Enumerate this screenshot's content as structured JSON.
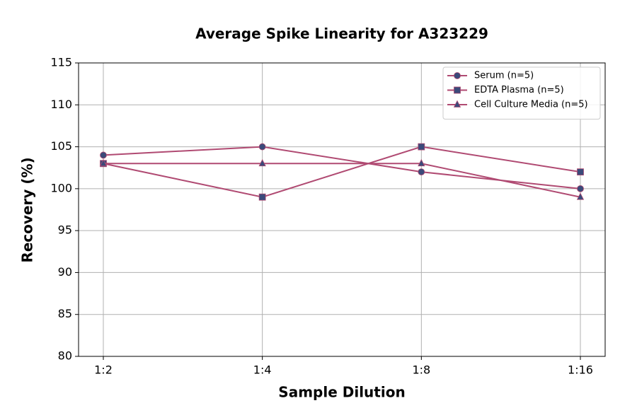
{
  "chart_data": {
    "type": "line",
    "title": "Average Spike Linearity for A323229",
    "x_label": "Sample Dilution",
    "y_label": "Recovery (%)",
    "categories": [
      "1:2",
      "1:4",
      "1:8",
      "1:16"
    ],
    "series": [
      {
        "name": "Serum (n=5)",
        "color": "#b04a72",
        "marker": "circle",
        "marker_color": "#3b4a7a",
        "values": [
          104,
          105,
          102,
          100
        ]
      },
      {
        "name": "EDTA Plasma (n=5)",
        "color": "#b04a72",
        "marker": "square",
        "marker_color": "#3b4a7a",
        "values": [
          103,
          99,
          105,
          102
        ]
      },
      {
        "name": "Cell Culture Media (n=5)",
        "color": "#b04a72",
        "marker": "triangle",
        "marker_color": "#3b4a7a",
        "values": [
          103,
          103,
          103,
          99
        ]
      }
    ],
    "ylim": [
      80,
      115
    ],
    "yticks": [
      80,
      85,
      90,
      95,
      100,
      105,
      110,
      115
    ],
    "grid": true,
    "legend": "upper right"
  }
}
